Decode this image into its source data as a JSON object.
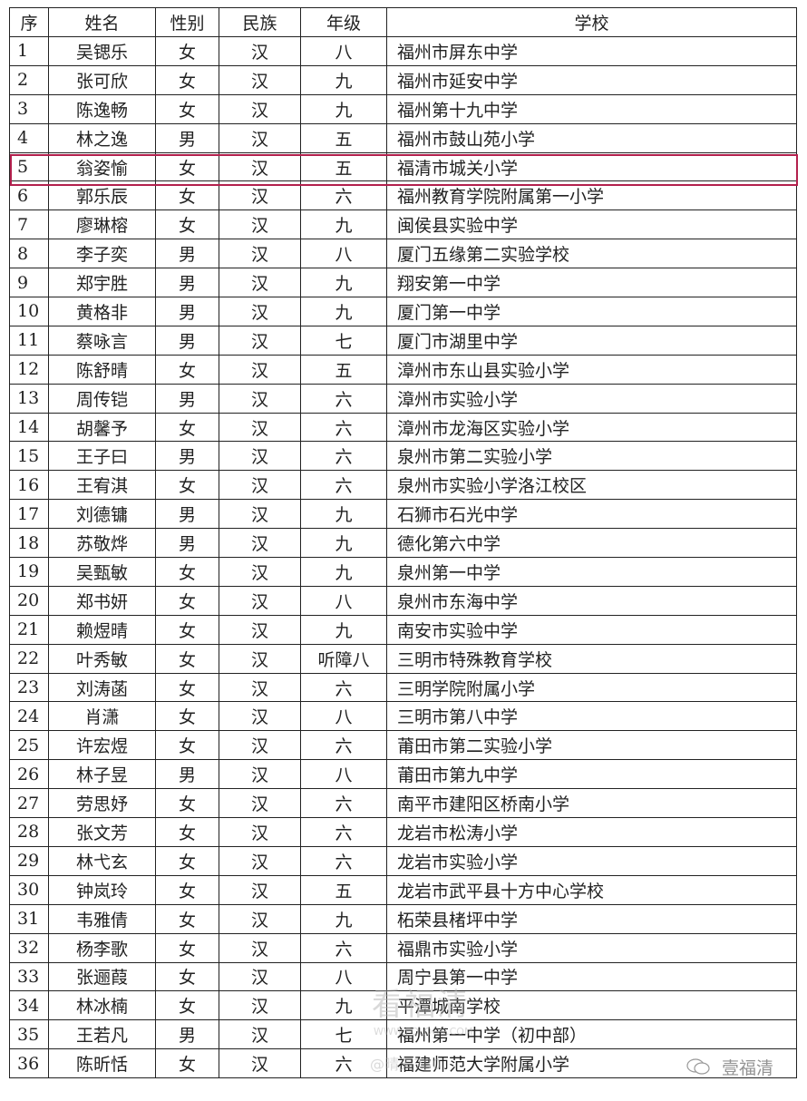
{
  "headers": [
    "序",
    "姓名",
    "性别",
    "民族",
    "年级",
    "学校"
  ],
  "highlight_row": 5,
  "highlight_color": "#b3204d",
  "rows": [
    [
      "1",
      "吴锶乐",
      "女",
      "汉",
      "八",
      "福州市屏东中学"
    ],
    [
      "2",
      "张可欣",
      "女",
      "汉",
      "九",
      "福州市延安中学"
    ],
    [
      "3",
      "陈逸畅",
      "女",
      "汉",
      "九",
      "福州第十九中学"
    ],
    [
      "4",
      "林之逸",
      "男",
      "汉",
      "五",
      "福州市鼓山苑小学"
    ],
    [
      "5",
      "翁姿愉",
      "女",
      "汉",
      "五",
      "福清市城关小学"
    ],
    [
      "6",
      "郭乐辰",
      "女",
      "汉",
      "六",
      "福州教育学院附属第一小学"
    ],
    [
      "7",
      "廖琳榕",
      "女",
      "汉",
      "九",
      "闽侯县实验中学"
    ],
    [
      "8",
      "李子奕",
      "男",
      "汉",
      "八",
      "厦门五缘第二实验学校"
    ],
    [
      "9",
      "郑宇胜",
      "男",
      "汉",
      "九",
      "翔安第一中学"
    ],
    [
      "10",
      "黄格非",
      "男",
      "汉",
      "九",
      "厦门第一中学"
    ],
    [
      "11",
      "蔡咏言",
      "男",
      "汉",
      "七",
      "厦门市湖里中学"
    ],
    [
      "12",
      "陈舒晴",
      "女",
      "汉",
      "五",
      "漳州市东山县实验小学"
    ],
    [
      "13",
      "周传铠",
      "男",
      "汉",
      "六",
      "漳州市实验小学"
    ],
    [
      "14",
      "胡馨予",
      "女",
      "汉",
      "六",
      "漳州市龙海区实验小学"
    ],
    [
      "15",
      "王子曰",
      "男",
      "汉",
      "六",
      "泉州市第二实验小学"
    ],
    [
      "16",
      "王宥淇",
      "女",
      "汉",
      "六",
      "泉州市实验小学洛江校区"
    ],
    [
      "17",
      "刘德镛",
      "男",
      "汉",
      "九",
      "石狮市石光中学"
    ],
    [
      "18",
      "苏敬烨",
      "男",
      "汉",
      "九",
      "德化第六中学"
    ],
    [
      "19",
      "吴甄敏",
      "女",
      "汉",
      "九",
      "泉州第一中学"
    ],
    [
      "20",
      "郑书妍",
      "女",
      "汉",
      "八",
      "泉州市东海中学"
    ],
    [
      "21",
      "赖煜晴",
      "女",
      "汉",
      "九",
      "南安市实验中学"
    ],
    [
      "22",
      "叶秀敏",
      "女",
      "汉",
      "听障八",
      "三明市特殊教育学校"
    ],
    [
      "23",
      "刘涛菡",
      "女",
      "汉",
      "六",
      "三明学院附属小学"
    ],
    [
      "24",
      "肖潇",
      "女",
      "汉",
      "八",
      "三明市第八中学"
    ],
    [
      "25",
      "许宏煜",
      "女",
      "汉",
      "六",
      "莆田市第二实验小学"
    ],
    [
      "26",
      "林子昱",
      "男",
      "汉",
      "八",
      "莆田市第九中学"
    ],
    [
      "27",
      "劳思妤",
      "女",
      "汉",
      "六",
      "南平市建阳区桥南小学"
    ],
    [
      "28",
      "张文芳",
      "女",
      "汉",
      "六",
      "龙岩市松涛小学"
    ],
    [
      "29",
      "林弋玄",
      "女",
      "汉",
      "六",
      "龙岩市实验小学"
    ],
    [
      "30",
      "钟岚玲",
      "女",
      "汉",
      "五",
      "龙岩市武平县十方中心学校"
    ],
    [
      "31",
      "韦雅倩",
      "女",
      "汉",
      "九",
      "柘荣县楮坪中学"
    ],
    [
      "32",
      "杨李歌",
      "女",
      "汉",
      "六",
      "福鼎市实验小学"
    ],
    [
      "33",
      "张逦葭",
      "女",
      "汉",
      "八",
      "周宁县第一中学"
    ],
    [
      "34",
      "林冰楠",
      "女",
      "汉",
      "九",
      "平潭城南学校"
    ],
    [
      "35",
      "王若凡",
      "男",
      "汉",
      "七",
      "福州第一中学（初中部）"
    ],
    [
      "36",
      "陈昕恬",
      "女",
      "汉",
      "六",
      "福建师范大学附属小学"
    ]
  ],
  "watermarks": {
    "site_logo": "看福清",
    "site_url": "WWW.FQLOOK.COM",
    "weibo_handle": "@晴天780",
    "wechat_account": "壹福清"
  }
}
